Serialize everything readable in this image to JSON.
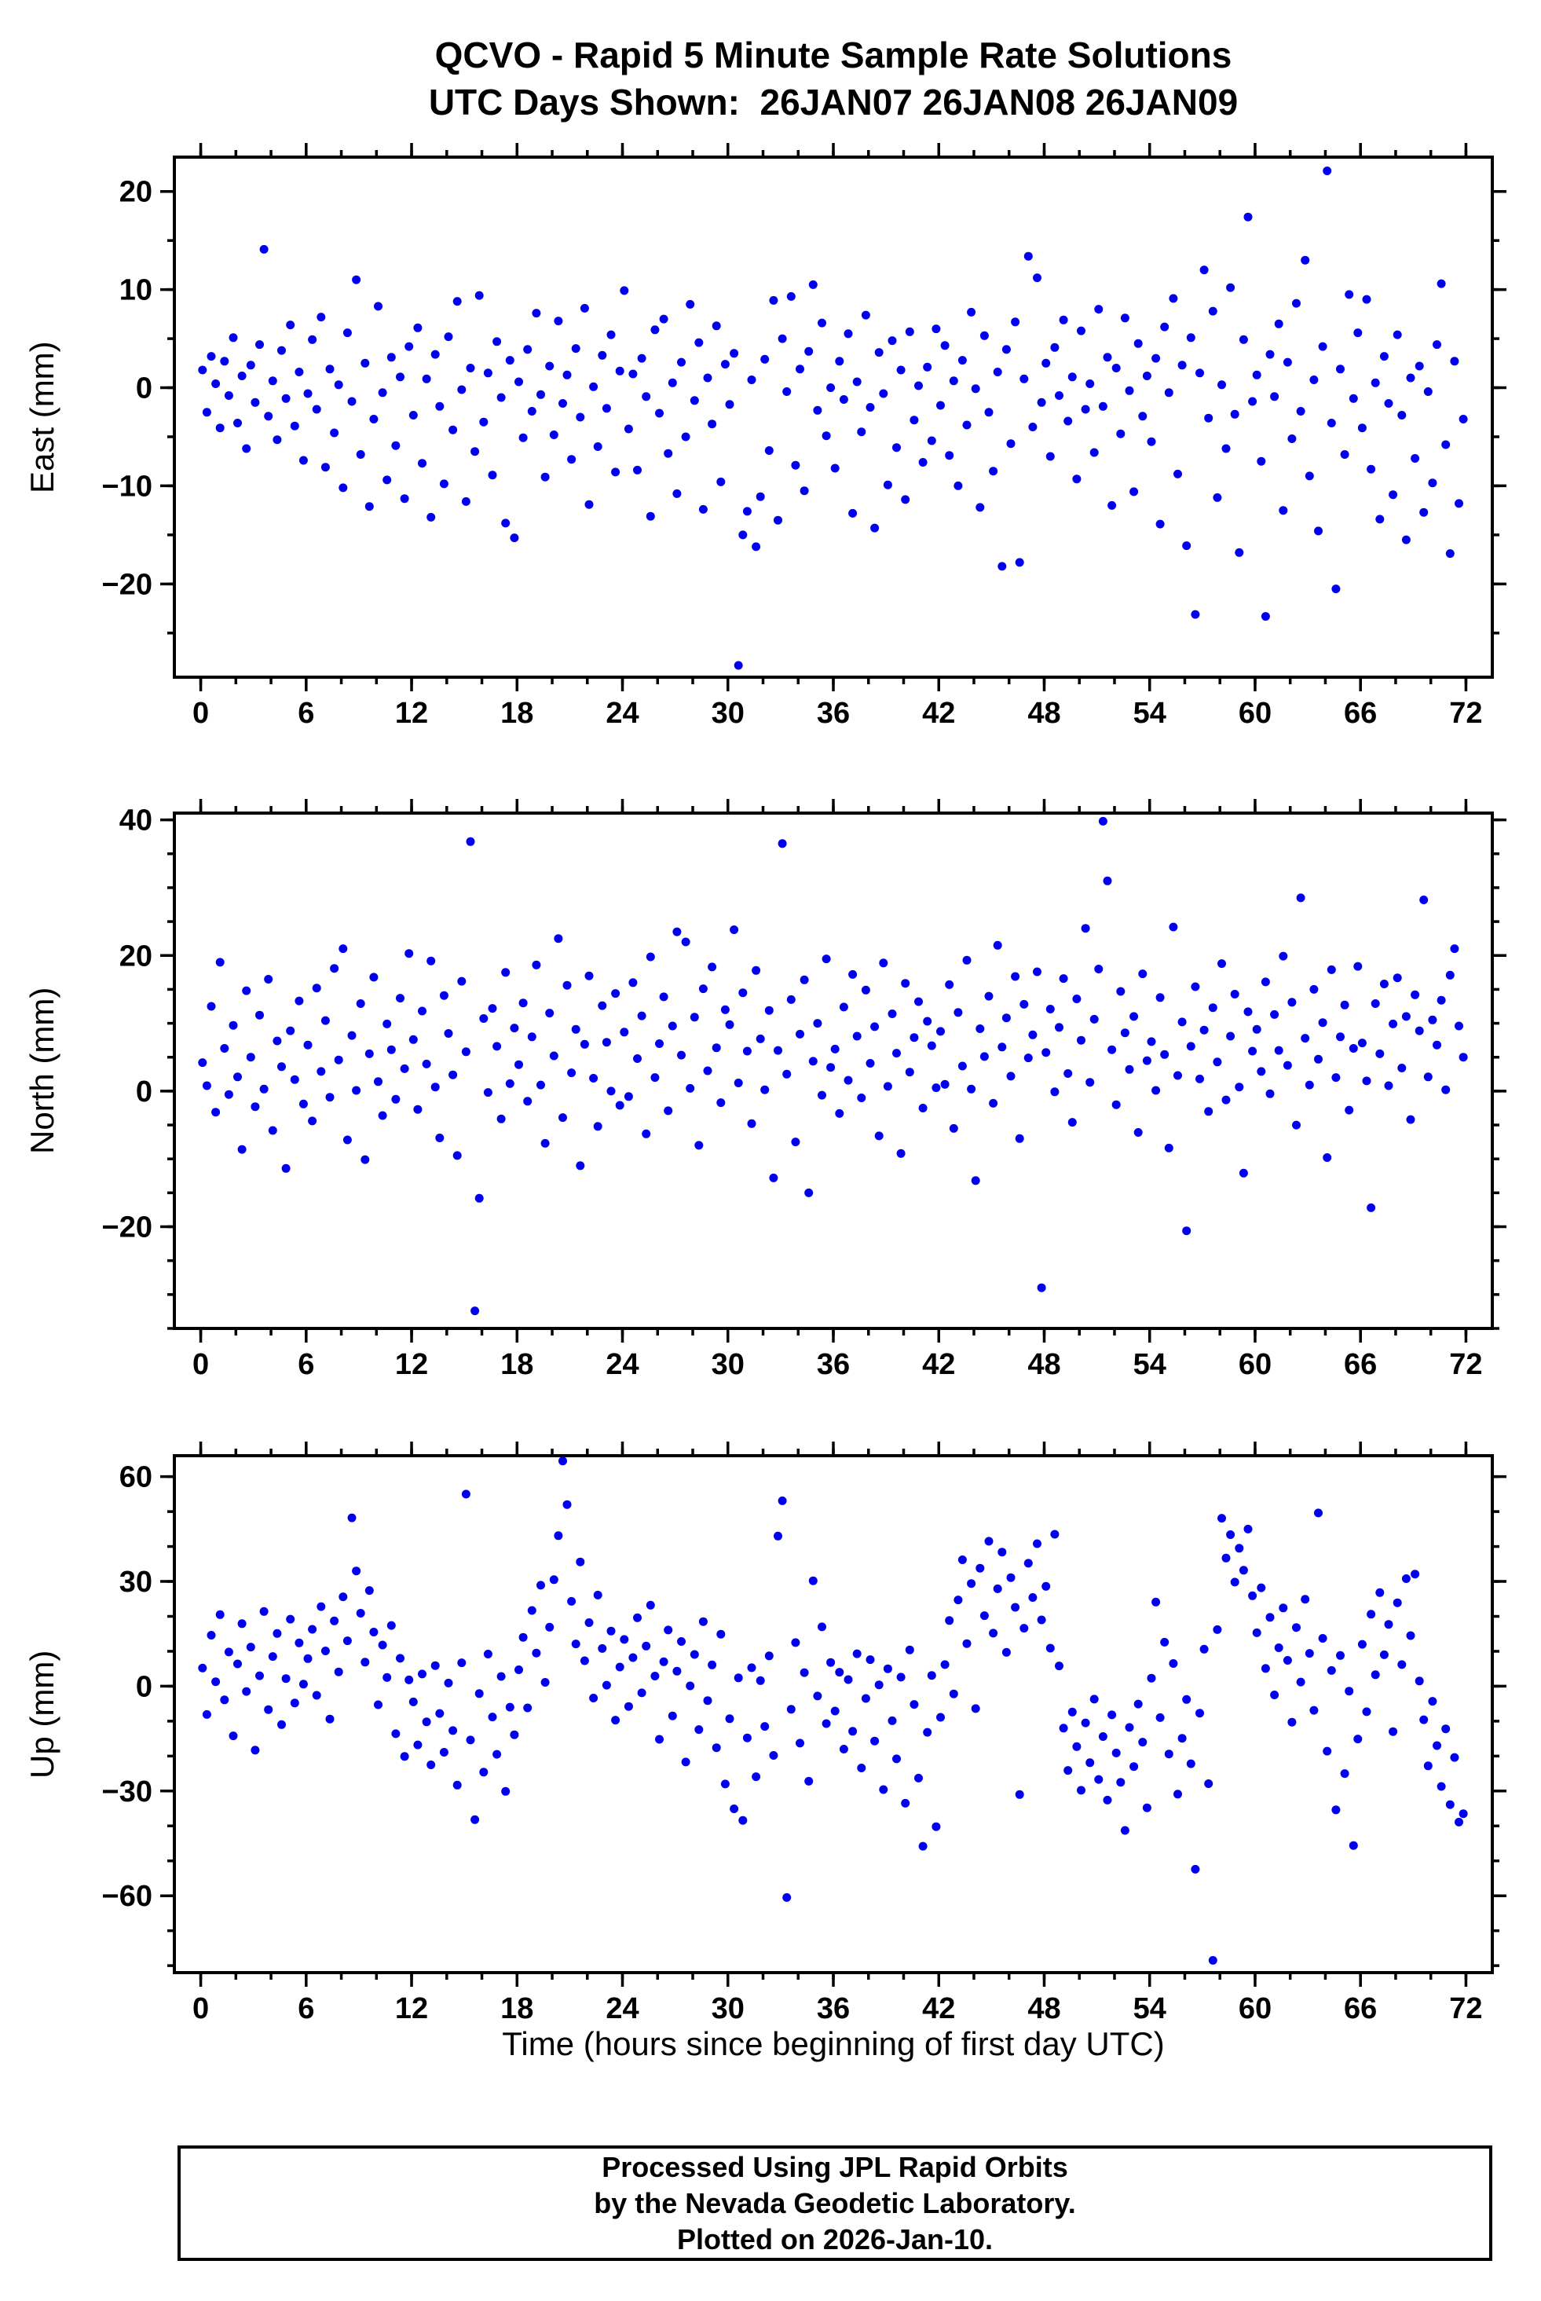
{
  "title": {
    "line1": "QCVO - Rapid 5 Minute Sample Rate Solutions",
    "line2": "UTC Days Shown:  26JAN07 26JAN08 26JAN09"
  },
  "xlabel": "Time (hours since beginning of first day UTC)",
  "footer": {
    "line1": "Processed Using JPL Rapid Orbits",
    "line2": "by the Nevada Geodetic Laboratory.",
    "line3": "Plotted on 2026-Jan-10."
  },
  "marker_color": "#0000ee",
  "chart_data": [
    {
      "type": "scatter",
      "name": "east",
      "ylabel": "East (mm)",
      "xlim": [
        -1.5,
        73.5
      ],
      "ylim": [
        -29.5,
        23.5
      ],
      "xticks": [
        0,
        6,
        12,
        18,
        24,
        30,
        36,
        42,
        48,
        54,
        60,
        66,
        72
      ],
      "yticks": [
        -20,
        -10,
        0,
        10,
        20
      ],
      "x_minor": 2,
      "y_minor": 5,
      "x_start": 0.1,
      "x_step": 0.25,
      "y": [
        1.8,
        -2.5,
        3.2,
        0.4,
        -4.1,
        2.7,
        -0.8,
        5.1,
        -3.6,
        1.2,
        -6.2,
        2.3,
        -1.5,
        4.4,
        14.1,
        -2.9,
        0.7,
        -5.3,
        3.8,
        -1.1,
        6.4,
        -3.9,
        1.6,
        -7.4,
        -0.6,
        4.9,
        -2.2,
        7.2,
        -8.1,
        1.9,
        -4.6,
        0.3,
        -10.2,
        5.6,
        -1.4,
        11.0,
        -6.8,
        2.5,
        -12.1,
        -3.2,
        8.3,
        -0.5,
        -9.4,
        3.1,
        -5.9,
        1.1,
        -11.3,
        4.2,
        -2.8,
        6.1,
        -7.7,
        0.9,
        -13.2,
        3.4,
        -1.9,
        -9.8,
        5.2,
        -4.3,
        8.8,
        -0.2,
        -11.6,
        2.0,
        -6.5,
        9.4,
        -3.5,
        1.5,
        -8.9,
        4.7,
        -1.0,
        -13.8,
        2.8,
        -15.3,
        0.6,
        -5.1,
        3.9,
        -2.4,
        7.6,
        -0.7,
        -9.1,
        2.2,
        -4.8,
        6.8,
        -1.6,
        1.3,
        -7.3,
        4.0,
        -3.0,
        8.1,
        -11.9,
        0.1,
        -6.0,
        3.3,
        -2.1,
        5.4,
        -8.6,
        1.7,
        9.9,
        -4.2,
        1.4,
        -8.4,
        3.0,
        -0.9,
        -13.1,
        5.9,
        -2.6,
        7.0,
        -6.7,
        0.5,
        -10.8,
        2.6,
        -5.0,
        8.5,
        -1.3,
        4.6,
        -12.4,
        1.0,
        -3.7,
        6.3,
        -9.6,
        2.4,
        -1.7,
        3.5,
        -28.3,
        -15.0,
        -12.6,
        0.8,
        -16.2,
        -11.1,
        2.9,
        -6.4,
        8.9,
        -13.5,
        5.0,
        -0.4,
        9.3,
        -7.9,
        1.9,
        -10.5,
        3.7,
        10.5,
        -2.3,
        6.6,
        -4.9,
        0.0,
        -8.2,
        2.7,
        -1.2,
        5.5,
        -12.8,
        0.6,
        -4.5,
        7.4,
        -2.0,
        -14.3,
        3.6,
        -0.6,
        -9.9,
        4.8,
        -6.1,
        1.8,
        -11.4,
        5.7,
        -3.3,
        0.2,
        -7.6,
        2.1,
        -5.4,
        6.0,
        -1.8,
        4.3,
        -6.9,
        0.7,
        -10.0,
        2.8,
        -3.8,
        7.7,
        -0.1,
        -12.2,
        5.3,
        -2.5,
        -8.5,
        1.6,
        -18.2,
        3.9,
        -5.7,
        6.7,
        -17.8,
        0.9,
        13.4,
        -4.0,
        11.2,
        -1.5,
        2.5,
        -7.0,
        4.1,
        -0.8,
        6.9,
        -3.4,
        1.1,
        -9.3,
        5.8,
        -2.2,
        0.4,
        -6.6,
        8.0,
        -1.9,
        3.1,
        -12.0,
        2.0,
        -4.7,
        7.1,
        -0.3,
        -10.6,
        4.5,
        -2.9,
        1.2,
        -5.5,
        3.0,
        -13.9,
        6.2,
        -0.5,
        9.1,
        -8.8,
        2.3,
        -16.1,
        5.1,
        -23.1,
        1.5,
        12.0,
        -3.1,
        7.8,
        -11.2,
        0.3,
        -6.2,
        10.2,
        -2.7,
        -16.8,
        4.9,
        17.4,
        -1.4,
        1.3,
        -7.5,
        -23.3,
        3.4,
        -0.9,
        6.5,
        -12.5,
        2.6,
        -5.2,
        8.6,
        -2.4,
        13.0,
        -9.0,
        0.8,
        -14.6,
        4.2,
        22.1,
        -3.6,
        -20.5,
        1.9,
        -6.8,
        9.5,
        -1.1,
        5.6,
        -4.1,
        9.0,
        -8.3,
        0.5,
        -13.4,
        3.2,
        -1.6,
        -10.9,
        5.4,
        -2.8,
        -15.5,
        1.0,
        -7.2,
        2.2,
        -12.7,
        -0.4,
        -9.7,
        4.4,
        10.6,
        -5.8,
        -16.9,
        2.7,
        -11.8,
        -3.2
      ]
    },
    {
      "type": "scatter",
      "name": "north",
      "ylabel": "North (mm)",
      "xlim": [
        -1.5,
        73.5
      ],
      "ylim": [
        -35,
        41
      ],
      "xticks": [
        0,
        6,
        12,
        18,
        24,
        30,
        36,
        42,
        48,
        54,
        60,
        66,
        72
      ],
      "yticks": [
        -20,
        0,
        20,
        40
      ],
      "x_minor": 2,
      "y_minor": 5,
      "x_start": 0.1,
      "x_step": 0.25,
      "y": [
        4.2,
        0.8,
        12.5,
        -3.1,
        19.0,
        6.3,
        -0.5,
        9.7,
        2.1,
        -8.6,
        14.8,
        5.0,
        -2.3,
        11.2,
        0.3,
        16.5,
        -5.8,
        7.4,
        3.6,
        -11.4,
        8.9,
        1.7,
        13.3,
        -1.9,
        6.8,
        -4.4,
        15.2,
        2.9,
        10.4,
        -0.9,
        18.1,
        4.6,
        21.0,
        -7.2,
        8.2,
        0.1,
        12.9,
        -10.1,
        5.5,
        16.8,
        1.4,
        -3.6,
        9.9,
        6.1,
        -1.2,
        13.7,
        3.3,
        20.3,
        7.6,
        -2.7,
        11.8,
        4.0,
        19.2,
        0.6,
        -6.9,
        14.1,
        8.5,
        2.4,
        -9.5,
        16.2,
        5.8,
        36.8,
        -32.4,
        -15.8,
        10.7,
        -0.2,
        12.2,
        6.6,
        -4.1,
        17.5,
        1.1,
        9.3,
        3.9,
        13.0,
        -1.5,
        8.0,
        18.6,
        0.9,
        -7.7,
        11.5,
        5.2,
        22.5,
        -3.9,
        15.6,
        2.7,
        9.1,
        -11.0,
        6.9,
        17.0,
        1.9,
        -5.2,
        12.6,
        7.2,
        0.0,
        14.4,
        -2.1,
        8.7,
        -0.8,
        16.0,
        4.8,
        11.1,
        -6.3,
        19.8,
        2.0,
        7.0,
        13.9,
        -2.9,
        9.6,
        23.5,
        5.3,
        22.0,
        0.4,
        10.9,
        -8.0,
        15.1,
        3.0,
        18.3,
        6.4,
        -1.7,
        12.0,
        9.8,
        23.8,
        1.2,
        14.5,
        5.9,
        -4.8,
        17.8,
        7.7,
        0.2,
        11.9,
        -12.8,
        6.0,
        36.5,
        2.5,
        13.5,
        -7.5,
        8.4,
        16.4,
        -15.0,
        4.4,
        10.0,
        -0.6,
        19.5,
        3.5,
        6.2,
        -3.3,
        12.4,
        1.6,
        17.2,
        8.1,
        -1.0,
        14.9,
        4.1,
        9.5,
        -6.6,
        18.9,
        0.7,
        11.4,
        5.6,
        -9.2,
        15.9,
        2.8,
        7.9,
        13.2,
        -2.5,
        10.3,
        6.7,
        0.5,
        8.8,
        1.0,
        15.7,
        -5.5,
        11.6,
        3.7,
        19.3,
        0.3,
        -13.2,
        9.2,
        5.1,
        14.0,
        -1.8,
        21.5,
        6.5,
        10.8,
        2.2,
        16.9,
        -7.0,
        12.8,
        4.9,
        8.3,
        17.6,
        -29.0,
        5.7,
        12.1,
        -0.1,
        9.4,
        16.6,
        2.6,
        -4.6,
        13.6,
        7.5,
        24.0,
        1.3,
        10.6,
        18.0,
        39.8,
        31.0,
        6.1,
        -2.0,
        14.7,
        8.6,
        3.2,
        11.0,
        -6.1,
        17.3,
        4.5,
        7.3,
        0.1,
        13.8,
        5.4,
        -8.4,
        24.2,
        2.3,
        10.2,
        -20.6,
        6.6,
        15.4,
        1.8,
        9.0,
        -3.0,
        12.3,
        4.3,
        18.8,
        -1.3,
        8.1,
        14.3,
        0.6,
        -12.1,
        11.7,
        5.9,
        9.1,
        2.9,
        16.1,
        -0.4,
        11.3,
        6.0,
        19.9,
        3.8,
        13.1,
        -5.0,
        28.5,
        7.8,
        0.9,
        15.0,
        4.7,
        10.1,
        -9.8,
        17.9,
        2.0,
        8.0,
        12.7,
        -2.8,
        6.3,
        18.4,
        7.1,
        1.5,
        -17.2,
        12.9,
        5.5,
        15.8,
        0.8,
        9.9,
        16.7,
        3.4,
        11.0,
        -4.2,
        14.2,
        8.9,
        28.2,
        2.1,
        10.5,
        6.8,
        13.4,
        0.2,
        17.1,
        21.0,
        9.6,
        5.0
      ]
    },
    {
      "type": "scatter",
      "name": "up",
      "ylabel": "Up (mm)",
      "xlim": [
        -1.5,
        73.5
      ],
      "ylim": [
        -82,
        66
      ],
      "xticks": [
        0,
        6,
        12,
        18,
        24,
        30,
        36,
        42,
        48,
        54,
        60,
        66,
        72
      ],
      "yticks": [
        -60,
        -30,
        0,
        30,
        60
      ],
      "x_minor": 2,
      "y_minor": 10,
      "x_start": 0.1,
      "x_step": 0.25,
      "y": [
        5.2,
        -8.1,
        14.6,
        1.3,
        20.5,
        -3.9,
        9.8,
        -14.2,
        6.4,
        17.9,
        -1.5,
        11.2,
        -18.3,
        3.0,
        21.4,
        -6.7,
        8.5,
        15.1,
        -11.0,
        2.2,
        19.2,
        -4.8,
        12.4,
        0.6,
        7.9,
        16.3,
        -2.6,
        22.8,
        10.1,
        -9.4,
        18.7,
        4.1,
        25.6,
        13.0,
        48.2,
        33.0,
        20.9,
        6.9,
        27.4,
        15.5,
        -5.3,
        11.8,
        2.5,
        17.4,
        -13.6,
        8.0,
        -20.1,
        1.8,
        -4.5,
        -16.8,
        3.5,
        -10.2,
        -22.5,
        5.9,
        -7.8,
        -18.9,
        0.9,
        -12.7,
        -28.3,
        6.7,
        55.0,
        -15.4,
        -38.2,
        -2.1,
        -24.6,
        9.2,
        -8.8,
        -19.5,
        2.8,
        -30.1,
        -6.0,
        -13.9,
        4.7,
        14.0,
        -6.2,
        21.7,
        9.5,
        28.9,
        1.1,
        16.9,
        30.5,
        43.1,
        64.5,
        52.0,
        24.3,
        12.1,
        35.6,
        7.3,
        18.2,
        -3.4,
        26.1,
        10.8,
        0.3,
        15.8,
        -9.7,
        5.5,
        13.4,
        -5.8,
        8.2,
        19.6,
        -1.9,
        11.5,
        23.2,
        2.9,
        -15.2,
        7.0,
        16.1,
        -8.5,
        4.3,
        12.8,
        -21.7,
        0.1,
        9.1,
        -12.4,
        18.5,
        -4.1,
        6.1,
        -17.6,
        14.9,
        -28.0,
        -9.3,
        -35.1,
        2.4,
        -38.4,
        -14.8,
        5.3,
        -25.9,
        1.6,
        -11.5,
        8.7,
        -19.8,
        43.0,
        53.1,
        -60.5,
        -6.6,
        12.5,
        -16.3,
        3.9,
        -27.2,
        30.2,
        -2.8,
        17.0,
        -10.7,
        6.8,
        -7.1,
        4.0,
        -18.0,
        1.9,
        -12.9,
        9.3,
        -23.4,
        -3.5,
        7.6,
        -15.7,
        0.4,
        -29.6,
        5.0,
        -9.9,
        -20.8,
        2.6,
        -33.5,
        10.4,
        -5.2,
        -26.3,
        -45.8,
        -13.2,
        3.1,
        -40.2,
        -8.9,
        6.2,
        18.8,
        -2.2,
        24.7,
        36.2,
        12.2,
        29.4,
        -6.4,
        33.8,
        20.2,
        41.5,
        15.2,
        27.9,
        38.4,
        9.7,
        31.1,
        22.6,
        -31.0,
        16.6,
        35.2,
        25.4,
        40.8,
        19.0,
        28.6,
        10.9,
        43.5,
        5.8,
        -12.0,
        -24.1,
        -7.4,
        -17.3,
        -29.8,
        -10.5,
        -21.9,
        -3.7,
        -26.7,
        -14.4,
        -32.6,
        -8.2,
        -19.1,
        -27.5,
        -41.3,
        -11.8,
        -23.0,
        -5.1,
        -16.0,
        -34.8,
        2.3,
        24.1,
        -9.0,
        12.6,
        -19.4,
        6.5,
        -30.9,
        -14.9,
        -3.8,
        -22.2,
        -52.4,
        -7.7,
        10.6,
        -27.9,
        -78.5,
        16.2,
        48.1,
        36.7,
        43.4,
        29.8,
        39.5,
        33.2,
        45.0,
        25.9,
        15.3,
        28.2,
        5.1,
        19.7,
        -2.5,
        11.0,
        22.4,
        7.4,
        -10.3,
        16.8,
        1.2,
        24.9,
        9.4,
        -6.9,
        49.6,
        13.7,
        -18.6,
        4.5,
        -35.4,
        8.8,
        -25.0,
        -1.4,
        -45.6,
        -15.1,
        12.0,
        -7.3,
        20.6,
        3.3,
        26.8,
        9.0,
        17.7,
        -13.0,
        23.9,
        6.2,
        30.8,
        14.5,
        32.1,
        1.5,
        -9.6,
        -22.8,
        -4.3,
        -17.0,
        -28.7,
        -12.2,
        -33.9,
        -20.4,
        -38.9,
        -36.5
      ]
    }
  ]
}
